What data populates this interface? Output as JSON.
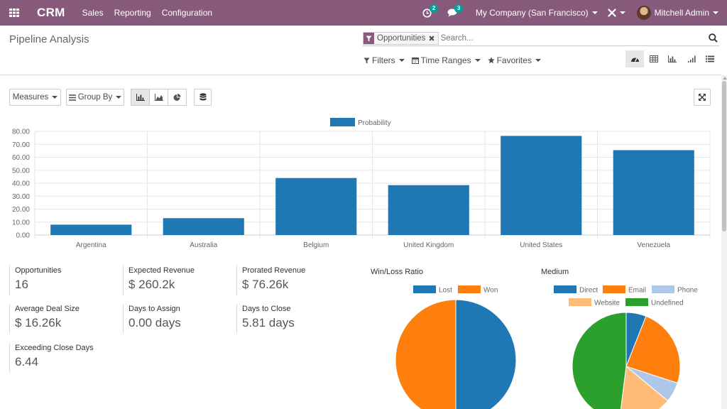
{
  "navbar": {
    "brand": "CRM",
    "menu": [
      "Sales",
      "Reporting",
      "Configuration"
    ],
    "activity_badge": "2",
    "messages_badge": "3",
    "company": "My Company (San Francisco)",
    "user": "Mitchell Admin",
    "colors": {
      "bar": "#875a7b",
      "badge": "#00a09d"
    }
  },
  "control_panel": {
    "breadcrumb": "Pipeline Analysis",
    "facet": "Opportunities",
    "search_placeholder": "Search...",
    "filters": [
      "Filters",
      "Time Ranges",
      "Favorites"
    ],
    "views": [
      "dashboard-view",
      "pivot-view",
      "graph-view",
      "cohort-view",
      "list-view"
    ],
    "active_view": "dashboard-view"
  },
  "toolbar": {
    "measures": "Measures",
    "group_by": "Group By"
  },
  "chart_data": [
    {
      "type": "bar",
      "categories": [
        "Argentina",
        "Australia",
        "Belgium",
        "United Kingdom",
        "United States",
        "Venezuela"
      ],
      "series": [
        {
          "name": "Probability",
          "values": [
            8,
            13,
            44,
            38.5,
            76.5,
            65.5
          ],
          "color": "#1f77b4"
        }
      ],
      "y_ticks": [
        "0.00",
        "10.00",
        "20.00",
        "30.00",
        "40.00",
        "50.00",
        "60.00",
        "70.00",
        "80.00"
      ],
      "ylim": [
        0,
        80
      ],
      "grid": true,
      "legend": "top-center"
    },
    {
      "type": "pie",
      "title": "Win/Loss Ratio",
      "labels": [
        "Lost",
        "Won"
      ],
      "values": [
        50,
        50
      ],
      "colors": [
        "#1f77b4",
        "#ff7f0e"
      ],
      "legend": "top"
    },
    {
      "type": "pie",
      "title": "Medium",
      "labels": [
        "Direct",
        "Email",
        "Phone",
        "Website",
        "Undefined"
      ],
      "values": [
        6,
        24,
        6,
        16,
        48
      ],
      "colors": [
        "#1f77b4",
        "#ff7f0e",
        "#aec7e8",
        "#ffbb78",
        "#2ca02c"
      ],
      "legend": "top"
    }
  ],
  "statistics": [
    {
      "label": "Opportunities",
      "value": "16"
    },
    {
      "label": "Expected Revenue",
      "value": "$ 260.2k"
    },
    {
      "label": "Prorated Revenue",
      "value": "$ 76.26k"
    },
    {
      "label": "Average Deal Size",
      "value": "$ 16.26k"
    },
    {
      "label": "Days to Assign",
      "value": "0.00 days"
    },
    {
      "label": "Days to Close",
      "value": "5.81 days"
    },
    {
      "label": "Exceeding Close Days",
      "value": "6.44"
    }
  ]
}
